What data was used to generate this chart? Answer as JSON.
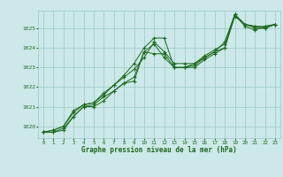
{
  "background_color": "#cce8e8",
  "grid_color": "#9ac8c8",
  "line_color": "#1a6b1a",
  "marker_color": "#1a6b1a",
  "xlabel": "Graphe pression niveau de la mer (hPa)",
  "xlabel_color": "#1a6b1a",
  "tick_color": "#1a6b1a",
  "yticks": [
    1020,
    1021,
    1022,
    1023,
    1024,
    1025
  ],
  "xticks": [
    0,
    1,
    2,
    3,
    4,
    5,
    6,
    7,
    8,
    9,
    10,
    11,
    12,
    13,
    14,
    15,
    16,
    17,
    18,
    19,
    20,
    21,
    22,
    23
  ],
  "series": [
    [
      1019.7,
      1019.7,
      1019.8,
      1020.5,
      1021.0,
      1021.0,
      1021.3,
      1021.8,
      1022.2,
      1022.5,
      1023.8,
      1023.7,
      1023.7,
      1023.0,
      1023.0,
      1023.0,
      1023.4,
      1023.7,
      1024.0,
      1025.7,
      1025.1,
      1024.9,
      1025.1,
      1025.2
    ],
    [
      1019.7,
      1019.7,
      1019.9,
      1020.5,
      1021.0,
      1021.1,
      1021.5,
      1021.8,
      1022.2,
      1022.3,
      1023.8,
      1024.2,
      1023.5,
      1023.0,
      1023.0,
      1023.1,
      1023.5,
      1023.8,
      1024.0,
      1025.6,
      1025.2,
      1025.0,
      1025.0,
      1025.2
    ],
    [
      1019.7,
      1019.8,
      1020.0,
      1020.7,
      1021.1,
      1021.2,
      1021.6,
      1022.1,
      1022.5,
      1022.9,
      1023.5,
      1024.3,
      1023.8,
      1023.2,
      1023.2,
      1023.2,
      1023.6,
      1023.9,
      1024.2,
      1025.7,
      1025.2,
      1025.1,
      1025.0,
      1025.2
    ],
    [
      1019.7,
      1019.8,
      1020.0,
      1020.8,
      1021.1,
      1021.2,
      1021.7,
      1022.1,
      1022.6,
      1023.2,
      1024.0,
      1024.5,
      1024.5,
      1023.0,
      1023.0,
      1023.2,
      1023.5,
      1023.8,
      1024.3,
      1025.7,
      1025.2,
      1025.1,
      1025.1,
      1025.2
    ]
  ],
  "xlim": [
    -0.5,
    23.5
  ],
  "ylim": [
    1019.4,
    1025.9
  ],
  "font_family": "monospace",
  "figwidth": 3.2,
  "figheight": 2.0,
  "dpi": 100
}
